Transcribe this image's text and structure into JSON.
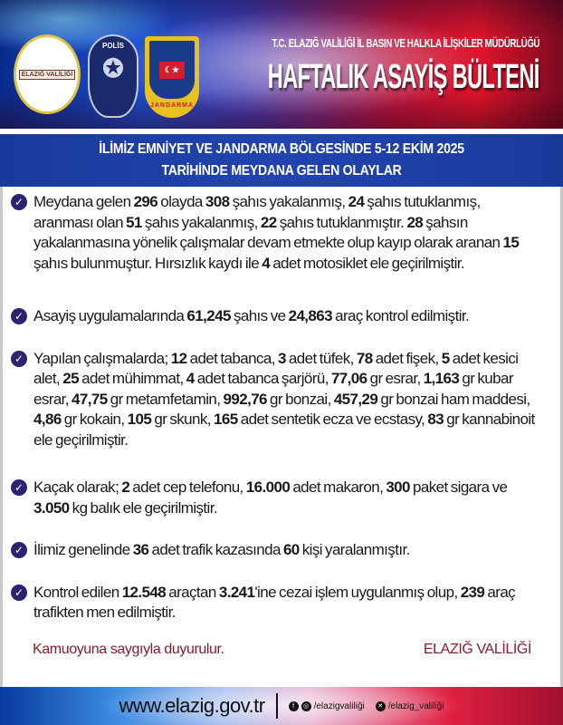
{
  "header": {
    "logos": {
      "valilik": "ELAZIĞ VALİLİĞİ",
      "polis": "POLİS",
      "jandarma": "JANDARMA"
    },
    "subtitle": "T.C. ELAZIĞ VALİLİĞİ İL BASIN VE HALKLA İLİŞKİLER MÜDÜRLÜĞÜ",
    "title": "HAFTALIK ASAYİŞ BÜLTENİ"
  },
  "band": {
    "line1": "İLİMİZ EMNİYET VE JANDARMA BÖLGESİNDE 5-12 EKİM 2025",
    "line2": "TARİHİNDE MEYDANA GELEN OLAYLAR"
  },
  "items": [
    {
      "segments": [
        {
          "t": "Meydana gelen "
        },
        {
          "t": "296",
          "b": 1
        },
        {
          "t": " olayda "
        },
        {
          "t": "308",
          "b": 1
        },
        {
          "t": " şahıs yakalanmış, "
        },
        {
          "t": "24",
          "b": 1
        },
        {
          "t": " şahıs tutuklanmış, aranması olan "
        },
        {
          "t": "51",
          "b": 1
        },
        {
          "t": " şahıs yakalanmış, "
        },
        {
          "t": "22",
          "b": 1
        },
        {
          "t": " şahıs tutuklanmıştır. "
        },
        {
          "t": "28",
          "b": 1
        },
        {
          "t": " şahsın yakalanmasına yönelik çalışmalar devam etmekte olup kayıp olarak aranan "
        },
        {
          "t": "15",
          "b": 1
        },
        {
          "t": " şahıs bulunmuştur. Hırsızlık kaydı ile "
        },
        {
          "t": "4",
          "b": 1
        },
        {
          "t": " adet motosiklet ele geçirilmiştir."
        }
      ]
    },
    {
      "segments": [
        {
          "t": "Asayiş uygulamalarında "
        },
        {
          "t": "61,245",
          "b": 1
        },
        {
          "t": " şahıs ve "
        },
        {
          "t": "24,863",
          "b": 1
        },
        {
          "t": " araç kontrol edilmiştir."
        }
      ]
    },
    {
      "segments": [
        {
          "t": "Yapılan çalışmalarda; "
        },
        {
          "t": "12",
          "b": 1
        },
        {
          "t": " adet tabanca, "
        },
        {
          "t": "3",
          "b": 1
        },
        {
          "t": " adet tüfek, "
        },
        {
          "t": "78",
          "b": 1
        },
        {
          "t": " adet fişek, "
        },
        {
          "t": "5",
          "b": 1
        },
        {
          "t": " adet kesici alet, "
        },
        {
          "t": "25",
          "b": 1
        },
        {
          "t": " adet mühimmat, "
        },
        {
          "t": "4",
          "b": 1
        },
        {
          "t": " adet tabanca şarjörü, "
        },
        {
          "t": "77,06",
          "b": 1
        },
        {
          "t": " gr esrar, "
        },
        {
          "t": "1,163",
          "b": 1
        },
        {
          "t": " gr kubar esrar, "
        },
        {
          "t": "47,75",
          "b": 1
        },
        {
          "t": " gr metamfetamin, "
        },
        {
          "t": "992,76",
          "b": 1
        },
        {
          "t": " gr bonzai, "
        },
        {
          "t": "457,29",
          "b": 1
        },
        {
          "t": " gr bonzai ham maddesi, "
        },
        {
          "t": "4,86",
          "b": 1
        },
        {
          "t": " gr kokain, "
        },
        {
          "t": "105",
          "b": 1
        },
        {
          "t": " gr skunk, "
        },
        {
          "t": "165",
          "b": 1
        },
        {
          "t": " adet sentetik ecza ve ecstasy, "
        },
        {
          "t": "83",
          "b": 1
        },
        {
          "t": " gr kannabinoit ele geçirilmiştir."
        }
      ]
    },
    {
      "segments": [
        {
          "t": "Kaçak olarak; "
        },
        {
          "t": "2",
          "b": 1
        },
        {
          "t": " adet cep telefonu, "
        },
        {
          "t": "16.000",
          "b": 1
        },
        {
          "t": " adet makaron, "
        },
        {
          "t": "300",
          "b": 1
        },
        {
          "t": " paket sigara  ve "
        },
        {
          "t": "3.050",
          "b": 1
        },
        {
          "t": " kg balık ele geçirilmiştir."
        }
      ]
    },
    {
      "segments": [
        {
          "t": "İlimiz genelinde "
        },
        {
          "t": "36",
          "b": 1
        },
        {
          "t": " adet trafik kazasında "
        },
        {
          "t": "60",
          "b": 1
        },
        {
          "t": " kişi yaralanmıştır."
        }
      ]
    },
    {
      "segments": [
        {
          "t": "Kontrol edilen "
        },
        {
          "t": "12.548",
          "b": 1
        },
        {
          "t": " araçtan "
        },
        {
          "t": "3.241",
          "b": 1
        },
        {
          "t": "'ine cezai işlem uygulanmış olup, "
        },
        {
          "t": "239",
          "b": 1
        },
        {
          "t": " araç trafikten men edilmiştir."
        }
      ]
    }
  ],
  "closing": {
    "left": "Kamuoyuna saygıyla duyurulur.",
    "right": "ELAZIĞ VALİLİĞİ"
  },
  "footer": {
    "url": "www.elazig.gov.tr",
    "social1": "/elazigvaliliği",
    "social2": "/elazig_valiliği",
    "icons": [
      "facebook-icon",
      "instagram-icon",
      "x-icon"
    ]
  },
  "colors": {
    "band": "#2244b0",
    "check": "#2a2470",
    "closing": "#8a1a28"
  }
}
